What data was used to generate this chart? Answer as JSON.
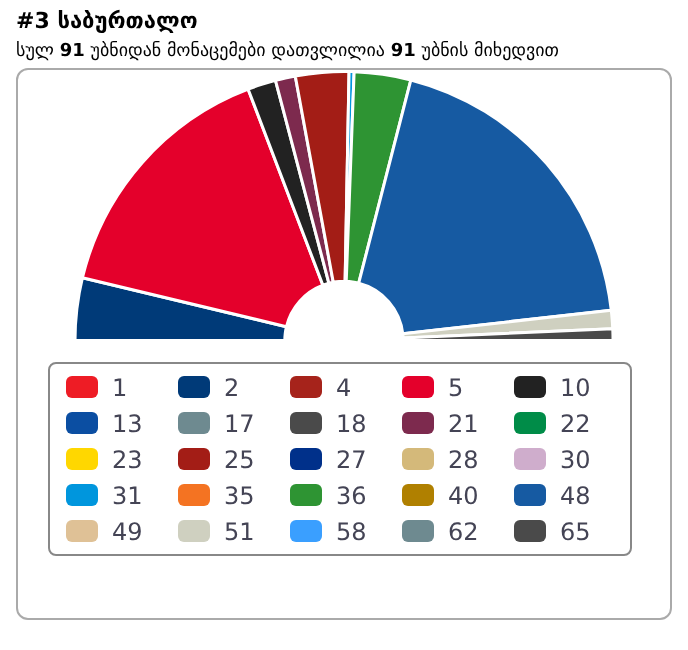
{
  "chart_data": {
    "type": "donut",
    "title": "#3 საბურთალო",
    "subtitle": "სულ 91 უბნიდან მონაცემები დათვლილია 91 უბნის მიხედვით",
    "legend": "bottom",
    "categories": [
      "1",
      "2",
      "4",
      "5",
      "10",
      "13",
      "17",
      "18",
      "21",
      "22",
      "23",
      "25",
      "27",
      "28",
      "30",
      "31",
      "35",
      "36",
      "40",
      "48",
      "49",
      "51",
      "58",
      "62",
      "65"
    ],
    "values": [
      0,
      7.5,
      0,
      30.9,
      3.4,
      0,
      0,
      0,
      2.4,
      0,
      0,
      6.4,
      0,
      0,
      0,
      0.6,
      0,
      6.8,
      0,
      38.4,
      0,
      2.2,
      0,
      0,
      1.4
    ],
    "colors": [
      "#ee1c25",
      "#003a78",
      "#a6231b",
      "#e4002b",
      "#222222",
      "#0b4ea2",
      "#6e8a90",
      "#4a4a4a",
      "#7d2a4e",
      "#008c48",
      "#ffd700",
      "#a31d16",
      "#00308a",
      "#d4b97a",
      "#cfadcc",
      "#0096dd",
      "#f47322",
      "#2e9433",
      "#b08000",
      "#165aa2",
      "#dfc196",
      "#cfd0c0",
      "#3a9fff",
      "#6e8a90",
      "#4a4a4a"
    ]
  }
}
